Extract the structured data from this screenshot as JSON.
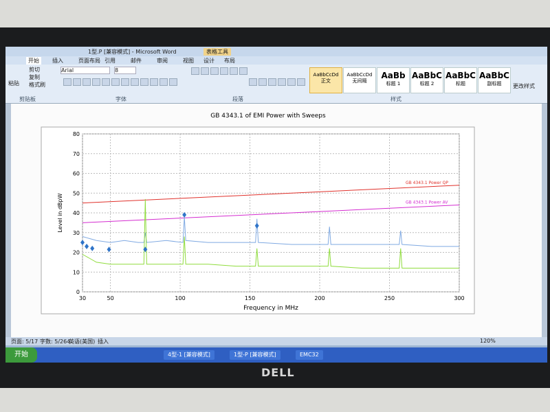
{
  "window": {
    "title": "1型.P [兼容模式] - Microsoft Word",
    "context_tab": "表格工具"
  },
  "ribbon": {
    "tabs": [
      "开始",
      "插入",
      "页面布局",
      "引用",
      "邮件",
      "审阅",
      "视图",
      "设计",
      "布局"
    ],
    "clipboard": [
      "粘贴",
      "剪切",
      "复制",
      "格式刷"
    ],
    "font_name": "Arial",
    "font_size": "8",
    "styles": [
      {
        "sample": "AaBbCcDd",
        "name": "正文"
      },
      {
        "sample": "AaBbCcDd",
        "name": "无间隔"
      },
      {
        "sample": "AaBb",
        "name": "标题 1"
      },
      {
        "sample": "AaBbC",
        "name": "标题 2"
      },
      {
        "sample": "AaBbC",
        "name": "标题"
      },
      {
        "sample": "AaBbC",
        "name": "副标题"
      }
    ],
    "change_styles": "更改样式",
    "groups": [
      "剪贴板",
      "字体",
      "段落",
      "样式"
    ]
  },
  "chart_data": {
    "type": "line",
    "title": "GB 4343.1 of EMI Power with Sweeps",
    "x_label": "Frequency in MHz",
    "y_label": "Level in dBpW",
    "xlim": [
      30,
      300
    ],
    "ylim": [
      0,
      80
    ],
    "xticks": [
      30,
      50,
      100,
      150,
      200,
      250,
      300
    ],
    "yticks": [
      0,
      10,
      20,
      30,
      40,
      50,
      60,
      70,
      80
    ],
    "grid": true,
    "series": [
      {
        "name": "GB 4343.1 Power QP",
        "color": "#e0302a",
        "x": [
          30,
          300
        ],
        "values": [
          45,
          54
        ]
      },
      {
        "name": "GB 4343.1 Power AV",
        "color": "#d42bd0",
        "x": [
          30,
          300
        ],
        "values": [
          35,
          44
        ]
      },
      {
        "color": "#7fa9e2",
        "x": [
          30,
          35,
          40,
          50,
          60,
          70,
          74,
          75,
          76,
          90,
          102,
          103,
          104,
          120,
          140,
          154,
          155,
          156,
          180,
          206,
          207,
          208,
          230,
          257,
          258,
          259,
          280,
          300
        ],
        "values": [
          28,
          27,
          26,
          25,
          26,
          25,
          25,
          30,
          25,
          26,
          25,
          38,
          26,
          25,
          25,
          25,
          37,
          25,
          24,
          24,
          33,
          24,
          24,
          24,
          31,
          24,
          23,
          23
        ]
      },
      {
        "color": "#8fdc3c",
        "x": [
          30,
          35,
          40,
          50,
          60,
          70,
          74,
          75,
          76,
          90,
          102,
          103,
          104,
          120,
          140,
          154,
          155,
          156,
          180,
          206,
          207,
          208,
          230,
          257,
          258,
          259,
          280,
          300
        ],
        "values": [
          19,
          17,
          15,
          14,
          14,
          14,
          14,
          47,
          14,
          14,
          14,
          28,
          14,
          14,
          13,
          13,
          22,
          13,
          13,
          13,
          22,
          13,
          12,
          12,
          22,
          12,
          12,
          12
        ]
      }
    ],
    "markers": {
      "color": "#2f74c8",
      "x": [
        30,
        33,
        37,
        49,
        75,
        103,
        155
      ],
      "values": [
        25,
        23,
        22,
        21.5,
        21.5,
        39,
        33.5
      ]
    }
  },
  "status_bar": {
    "items": [
      "页面: 5/17",
      "字数: 5/264",
      "英语(美国)",
      "插入"
    ],
    "zoom": "120%"
  },
  "taskbar": {
    "start": "开始",
    "tasks": [
      "4型-1 [兼容模式]",
      "1型-P [兼容模式]",
      "EMC32"
    ]
  },
  "monitor": {
    "brand": "DELL"
  }
}
